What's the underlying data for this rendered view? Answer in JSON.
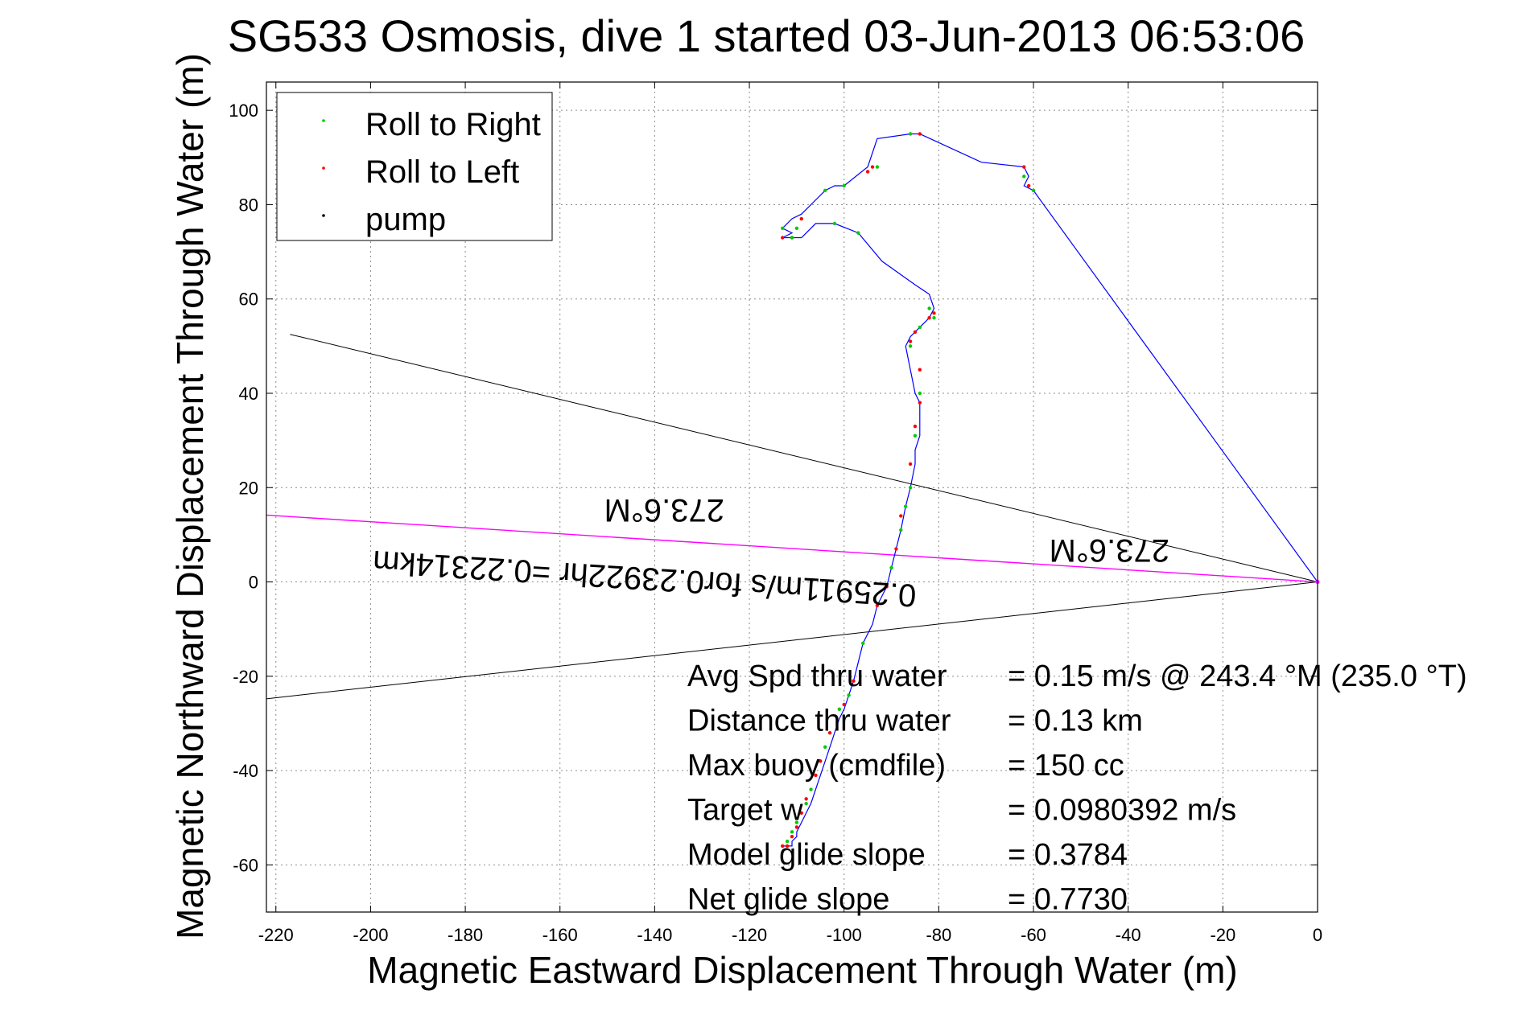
{
  "chart_data": {
    "type": "line",
    "title": "SG533 Osmosis, dive 1 started 03-Jun-2013 06:53:06",
    "xlabel": "Magnetic Eastward Displacement Through Water (m)",
    "ylabel": "Magnetic Northward Displacement Through Water (m)",
    "xlim": [
      -222,
      0
    ],
    "ylim": [
      -70,
      106
    ],
    "xticks": [
      -220,
      -200,
      -180,
      -160,
      -140,
      -120,
      -100,
      -80,
      -60,
      -40,
      -20,
      0
    ],
    "yticks": [
      100,
      80,
      60,
      40,
      20,
      0,
      -20,
      -40,
      -60
    ],
    "grid": true,
    "legend_position": "top-left",
    "legend": [
      {
        "label": "Roll to Right",
        "color": "#00cc00"
      },
      {
        "label": "Roll to Left",
        "color": "#ff0000"
      },
      {
        "label": "pump",
        "color": "#000000"
      }
    ],
    "colors": {
      "track": "#0000ff",
      "current": "#ff00ff",
      "wedge": "#000000"
    },
    "track": {
      "x": [
        0,
        -60,
        -62,
        -61,
        -62,
        -71,
        -84,
        -86,
        -93,
        -95,
        -100,
        -102,
        -104,
        -109,
        -111,
        -113,
        -111,
        -113,
        -109,
        -106,
        -102,
        -97,
        -92,
        -85,
        -82,
        -81,
        -82,
        -84,
        -86,
        -87,
        -86,
        -85,
        -84,
        -84,
        -85,
        -85,
        -86,
        -87,
        -88,
        -89,
        -90,
        -91,
        -93,
        -94,
        -96,
        -97,
        -98,
        -99,
        -100,
        -101,
        -102,
        -103,
        -104,
        -105,
        -106,
        -107,
        -108,
        -109,
        -110,
        -110,
        -111,
        -111,
        -112,
        -113
      ],
      "y": [
        0,
        83,
        84,
        86,
        88,
        89,
        95,
        95,
        94,
        88,
        84,
        84,
        83,
        78,
        77,
        75,
        74,
        73,
        73,
        76,
        76,
        74,
        68,
        63,
        61,
        58,
        56,
        54,
        52,
        50,
        45,
        40,
        38,
        31,
        28,
        25,
        20,
        16,
        11,
        7,
        3,
        -1,
        -5,
        -9,
        -13,
        -17,
        -21,
        -24,
        -27,
        -29,
        -32,
        -35,
        -38,
        -41,
        -44,
        -47,
        -49,
        -51,
        -53,
        -54,
        -55,
        -56,
        -56,
        -56
      ]
    },
    "roll_right_x": [
      -60,
      -62,
      -86,
      -93,
      -100,
      -104,
      -110,
      -113,
      -111,
      -102,
      -97,
      -82,
      -81,
      -84,
      -86,
      -84,
      -85,
      -86,
      -87,
      -88,
      -90,
      -96,
      -99,
      -101,
      -104,
      -107,
      -108,
      -110,
      -111,
      -112
    ],
    "roll_right_y": [
      83,
      86,
      95,
      88,
      84,
      83,
      75,
      75,
      73,
      76,
      74,
      58,
      56,
      54,
      50,
      40,
      31,
      20,
      16,
      11,
      3,
      -13,
      -24,
      -27,
      -35,
      -44,
      -47,
      -51,
      -53,
      -55
    ],
    "roll_left_x": [
      -61,
      -62,
      -84,
      -94,
      -95,
      -109,
      -111,
      -113,
      -81,
      -82,
      -85,
      -86,
      -84,
      -84,
      -85,
      -86,
      -88,
      -89,
      -91,
      -93,
      -98,
      -100,
      -103,
      -105,
      -106,
      -108,
      -109,
      -110,
      -111,
      -112,
      -113
    ],
    "roll_left_y": [
      84,
      88,
      95,
      88,
      87,
      77,
      73,
      73,
      57,
      56,
      53,
      51,
      45,
      38,
      33,
      25,
      14,
      7,
      -1,
      -5,
      -21,
      -26,
      -32,
      -38,
      -41,
      -46,
      -49,
      -52,
      -54,
      -56,
      -56
    ],
    "current_line": {
      "x": [
        0,
        -224
      ],
      "y": [
        0,
        14.3
      ]
    },
    "wedge_lines": [
      {
        "x": [
          0,
          -217
        ],
        "y": [
          0,
          52.5
        ]
      },
      {
        "x": [
          0,
          -224
        ],
        "y": [
          0,
          -25
        ]
      }
    ],
    "annotations": [
      {
        "text": "273.6°M",
        "x": -138,
        "y": 17.5,
        "rotation": 180
      },
      {
        "text": "273.6°M",
        "x": -44,
        "y": 9,
        "rotation": 180
      },
      {
        "text": "0.25911m/s for0.23922hr =0.22314km",
        "x": -142,
        "y": 3,
        "rotation": 183.6
      }
    ],
    "stats": [
      {
        "label": "Avg Spd thru water",
        "value": "=  0.15 m/s @ 243.4 °M (235.0 °T)"
      },
      {
        "label": "Distance thru water",
        "value": "=  0.13 km"
      },
      {
        "label": "Max buoy (cmdfile)",
        "value": "= 150 cc"
      },
      {
        "label": "Target w",
        "value": "= 0.0980392 m/s"
      },
      {
        "label": "Model glide slope",
        "value": "= 0.3784"
      },
      {
        "label": "Net glide slope",
        "value": "= 0.7730"
      }
    ]
  }
}
